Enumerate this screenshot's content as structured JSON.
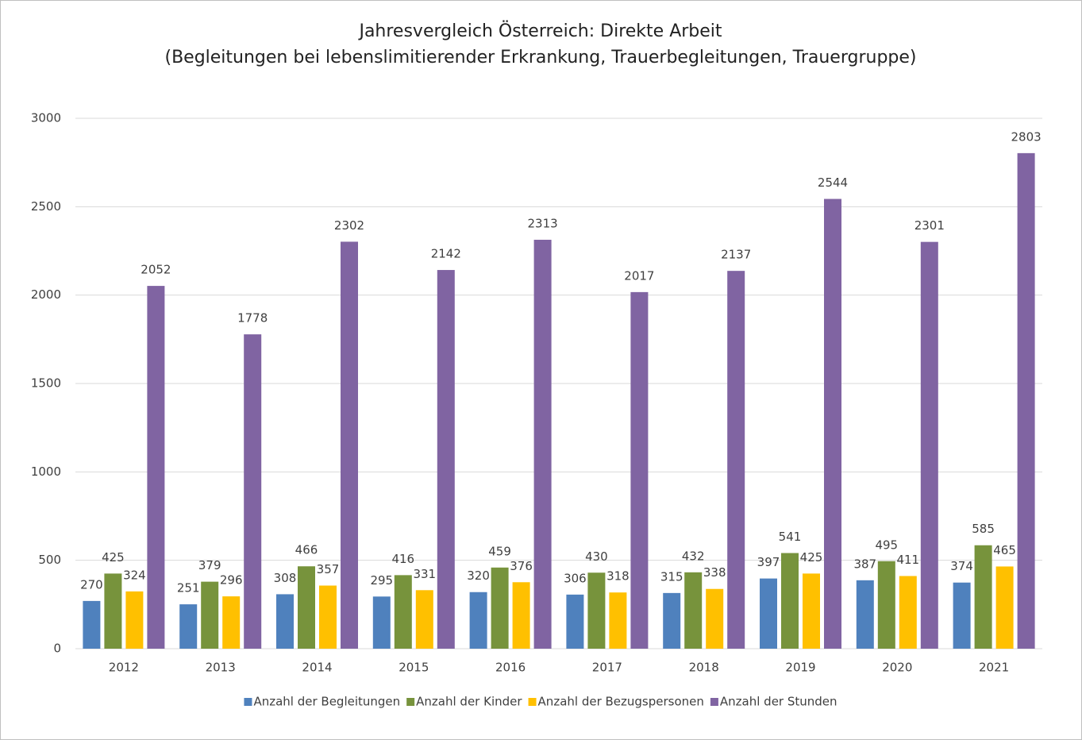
{
  "chart_data": {
    "type": "bar",
    "title": "Jahresvergleich Österreich: Direkte Arbeit",
    "subtitle": "(Begleitungen bei lebenslimitierender Erkrankung, Trauerbegleitungen, Trauergruppe)",
    "categories": [
      "2012",
      "2013",
      "2014",
      "2015",
      "2016",
      "2017",
      "2018",
      "2019",
      "2020",
      "2021"
    ],
    "series": [
      {
        "name": "Anzahl der Begleitungen",
        "color": "#4f81bd",
        "values": [
          270,
          251,
          308,
          295,
          320,
          306,
          315,
          397,
          387,
          374
        ]
      },
      {
        "name": "Anzahl der Kinder",
        "color": "#77933c",
        "values": [
          425,
          379,
          466,
          416,
          459,
          430,
          432,
          541,
          495,
          585
        ]
      },
      {
        "name": "Anzahl der Bezugspersonen",
        "color": "#ffc000",
        "values": [
          324,
          296,
          357,
          331,
          376,
          318,
          338,
          425,
          411,
          465
        ]
      },
      {
        "name": "Anzahl der Stunden",
        "color": "#8064a2",
        "values": [
          2052,
          1778,
          2302,
          2142,
          2313,
          2017,
          2137,
          2544,
          2301,
          2803
        ]
      }
    ],
    "ylim": [
      0,
      3000
    ],
    "yticks": [
      0,
      500,
      1000,
      1500,
      2000,
      2500,
      3000
    ],
    "grid": true,
    "legend": "bottom"
  }
}
